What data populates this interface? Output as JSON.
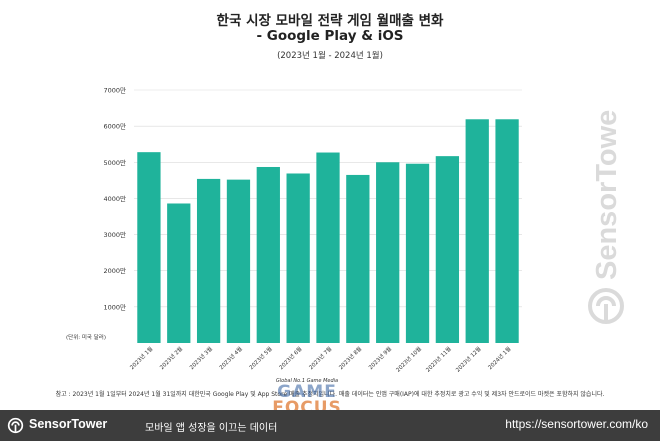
{
  "chart_data": {
    "type": "bar",
    "title": "한국 시장 모바일 전략 게임 월매출 변화",
    "title_line2": "- Google Play & iOS",
    "subtitle": "(2023년 1월 - 2024년 1월)",
    "unit_label": "(단위: 미국 달러)",
    "categories": [
      "2023년 1월",
      "2023년 2월",
      "2023년 3월",
      "2023년 4월",
      "2023년 5월",
      "2023년 6월",
      "2023년 7월",
      "2023년 8월",
      "2023년 9월",
      "2023년 10월",
      "2023년 11월",
      "2023년 12월",
      "2024년 1월"
    ],
    "values": [
      52800000,
      38600000,
      45400000,
      45200000,
      48700000,
      46900000,
      52700000,
      46500000,
      50000000,
      49600000,
      51700000,
      61900000,
      61900000
    ],
    "yticks": [
      1000,
      2000,
      3000,
      4000,
      5000,
      6000,
      7000
    ],
    "ytick_labels": [
      "1000만",
      "2000만",
      "3000만",
      "4000만",
      "5000만",
      "6000만",
      "7000만"
    ],
    "ylim": [
      0,
      70000000
    ],
    "bar_color": "#1fb39b",
    "grid": true
  },
  "footnote": "참고 : 2023년 1월 1일부터 2024년 1월 31일까지 대한민국 Google Play 및 App Store 매출 추정치입니다. 매출 데이터는 인앱 구매(IAP)에 대한 추정치로 광고 수익 및 제3자 안드로이드 마켓은 포함하지 않습니다.",
  "watermark": {
    "tag": "Global No.1 Game Media",
    "line1": "GAME",
    "line2": "FOCUS",
    "brand": "SensorTower"
  },
  "footer": {
    "brand": "SensorTower",
    "tagline": "모바일 앱 성장을 이끄는 데이터",
    "url": "https://sensortower.com/ko",
    "background": "#3d3d3d"
  }
}
